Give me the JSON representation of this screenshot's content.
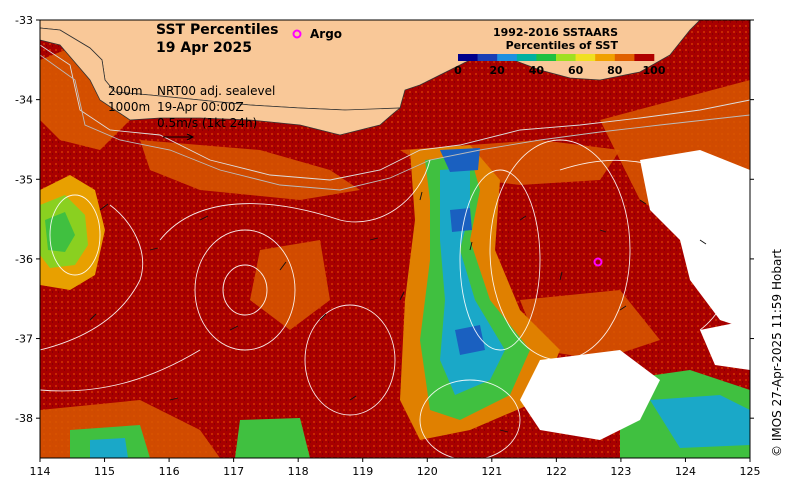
{
  "title": {
    "line1": "SST Percentiles",
    "line2": "19 Apr 2025"
  },
  "argo_legend": {
    "label": "Argo",
    "color": "#ff00ff"
  },
  "colorbar": {
    "title_line1": "1992-2016 SSTAARS",
    "title_line2": "Percentiles of SST",
    "ticks": [
      "0",
      "20",
      "40",
      "60",
      "80",
      "100"
    ],
    "colors": [
      "#00008b",
      "#1a3fb5",
      "#1e90e0",
      "#00b0a0",
      "#20c040",
      "#a0e020",
      "#f0e020",
      "#f0a000",
      "#e06000",
      "#b00000"
    ]
  },
  "annotations": {
    "isobath_200": "200m",
    "isobath_1000": "1000m",
    "altimetry": "NRT00 adj. sealevel",
    "valid_time": "19-Apr 00:00Z",
    "vector_scale": "0.5m/s (1kt 24h)"
  },
  "credit": "© IMOS 27-Apr-2025 11:59 Hobart",
  "axes": {
    "x_ticks": [
      "114",
      "115",
      "116",
      "117",
      "118",
      "119",
      "120",
      "121",
      "122",
      "123",
      "124",
      "125"
    ],
    "y_ticks": [
      "-33",
      "-34",
      "-35",
      "-36",
      "-37",
      "-38"
    ],
    "lon_range": [
      114,
      125
    ],
    "lat_range": [
      -38.5,
      -33
    ]
  },
  "argo_floats": [
    {
      "lon": 122.65,
      "lat": -36.05
    }
  ],
  "palette": {
    "land": "#f9c898",
    "high_percentile": "#a80000",
    "upper_percentile": "#d85800",
    "mid_percentile": "#e8a000",
    "cool_percentile": "#3cc060",
    "cold_percentile": "#1a9ad8",
    "no_data": "#ffffff"
  }
}
